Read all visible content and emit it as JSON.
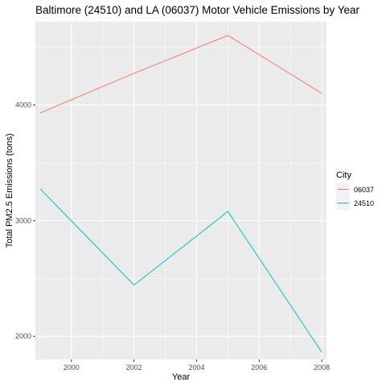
{
  "chart_data": {
    "type": "line",
    "title": "Baltimore (24510) and LA (06037) Motor Vehicle Emissions by Year",
    "xlabel": "Year",
    "ylabel": "Total PM2.5 Emissions (tons)",
    "x": [
      1999,
      2002,
      2005,
      2008
    ],
    "xlim": [
      1998.85,
      2008.15
    ],
    "ylim": [
      1800,
      4720
    ],
    "x_ticks": [
      2000,
      2002,
      2004,
      2006,
      2008
    ],
    "x_tick_labels": [
      "2000",
      "2002",
      "2004",
      "2006",
      "2008"
    ],
    "y_ticks": [
      2000,
      3000,
      4000
    ],
    "y_tick_labels": [
      "2000",
      "3000",
      "4000"
    ],
    "grid": true,
    "legend": {
      "title": "City",
      "placement": "right"
    },
    "series": [
      {
        "name": "06037",
        "color": "#F8766D",
        "values": [
          3931,
          4274,
          4601,
          4101
        ]
      },
      {
        "name": "24510",
        "color": "#00BFC4",
        "values": [
          3276,
          2443,
          3079,
          1863
        ]
      }
    ]
  }
}
